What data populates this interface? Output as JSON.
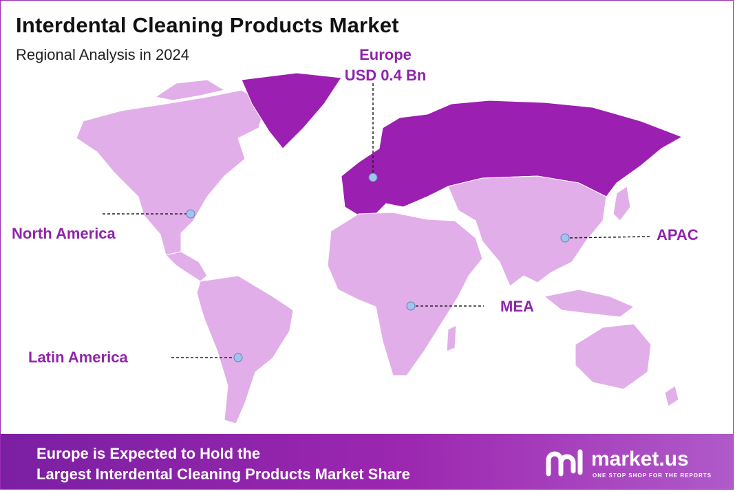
{
  "title": "Interdental Cleaning Products Market",
  "subtitle": "Regional Analysis in 2024",
  "regions": {
    "north_america": "North America",
    "europe_name": "Europe",
    "europe_value": "USD 0.4 Bn",
    "apac": "APAC",
    "mea": "MEA",
    "latin_america": "Latin America"
  },
  "footer": {
    "line1": "Europe is Expected to Hold the",
    "line2": "Largest Interdental Cleaning Products Market Share"
  },
  "brand": {
    "name": "market.us",
    "tagline": "ONE STOP SHOP FOR THE REPORTS"
  },
  "colors": {
    "highlight_region": "#9b1fb0",
    "other_regions": "#e2aee9",
    "label_text": "#8e24aa",
    "footer_bg": "#8e24aa"
  }
}
